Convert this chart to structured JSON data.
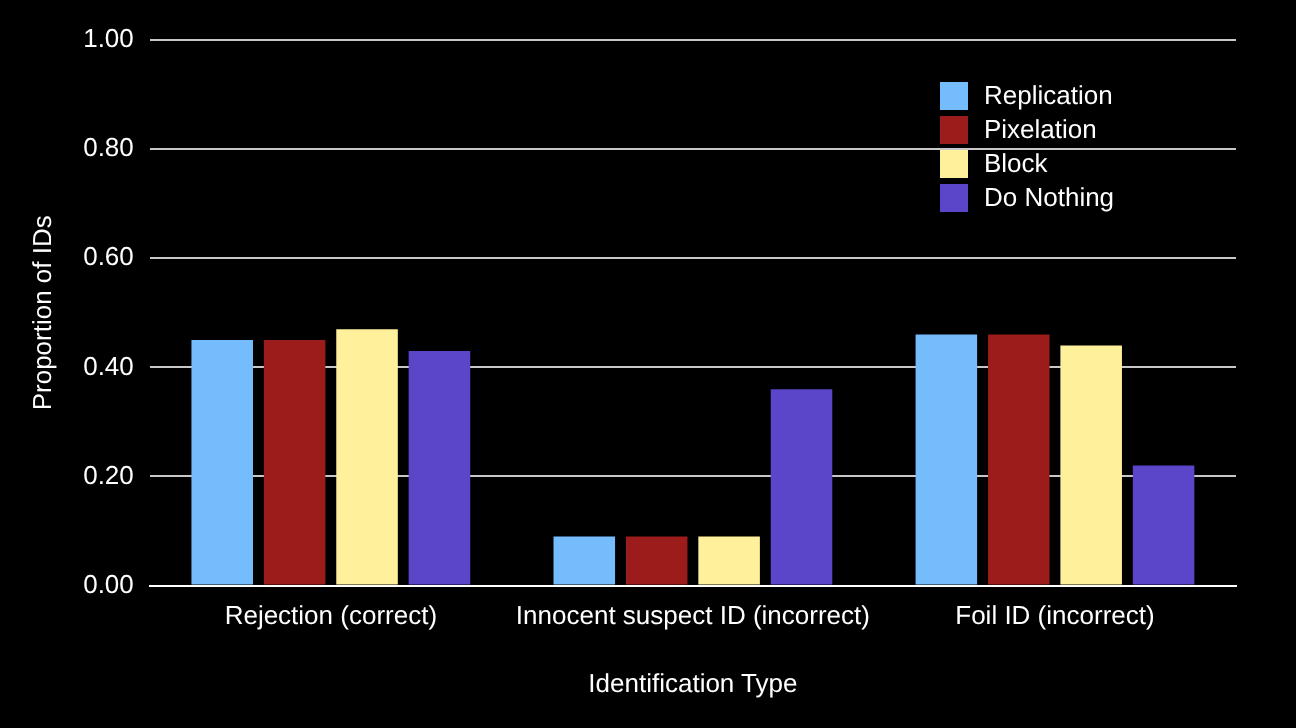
{
  "chart_data": {
    "type": "bar",
    "xlabel": "Identification Type",
    "ylabel": "Proportion of IDs",
    "categories": [
      "Rejection (correct)",
      "Innocent suspect ID (incorrect)",
      "Foil ID (incorrect)"
    ],
    "series": [
      {
        "name": "Replication",
        "color": "#74bcfc",
        "values": [
          0.45,
          0.09,
          0.46
        ]
      },
      {
        "name": "Pixelation",
        "color": "#9c1b1b",
        "values": [
          0.45,
          0.09,
          0.46
        ]
      },
      {
        "name": "Block",
        "color": "#fff19c",
        "values": [
          0.47,
          0.09,
          0.44
        ]
      },
      {
        "name": "Do Nothing",
        "color": "#5b45c9",
        "values": [
          0.43,
          0.36,
          0.22
        ]
      }
    ],
    "ylim": [
      0,
      1
    ],
    "yticks": [
      {
        "value": 0,
        "label": "0.00"
      },
      {
        "value": 0.2,
        "label": "0.20"
      },
      {
        "value": 0.4,
        "label": "0.40"
      },
      {
        "value": 0.6,
        "label": "0.60"
      },
      {
        "value": 0.8,
        "label": "0.80"
      },
      {
        "value": 1,
        "label": "1.00"
      }
    ],
    "grid": "y",
    "legend": "top right"
  }
}
